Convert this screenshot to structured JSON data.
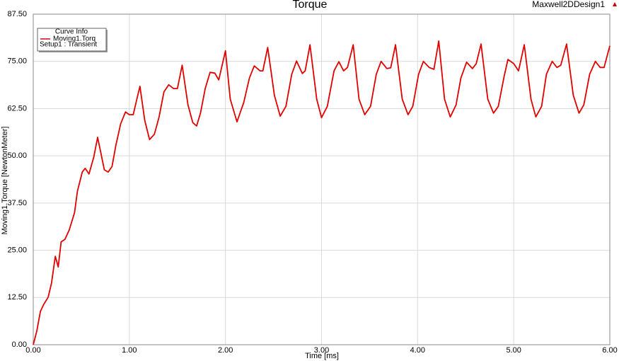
{
  "chart_data": {
    "type": "line",
    "title": "Torque",
    "design_name": "Maxwell2DDesign1",
    "x_label": "Time [ms]",
    "y_label": "Moving1.Torque [NewtonMeter]",
    "legend_title": "Curve Info",
    "legend_subtitle": "Setup1 : Transient",
    "legend_position": "top-left",
    "grid": true,
    "xlim": [
      0,
      6
    ],
    "ylim": [
      0,
      87.5
    ],
    "xticks": [
      {
        "value": 0,
        "label": "0.00"
      },
      {
        "value": 1,
        "label": "1.00"
      },
      {
        "value": 2,
        "label": "2.00"
      },
      {
        "value": 3,
        "label": "3.00"
      },
      {
        "value": 4,
        "label": "4.00"
      },
      {
        "value": 5,
        "label": "5.00"
      },
      {
        "value": 6,
        "label": "6.00"
      }
    ],
    "yticks": [
      {
        "value": 0,
        "label": "0.00"
      },
      {
        "value": 12.5,
        "label": "12.50"
      },
      {
        "value": 25,
        "label": "25.00"
      },
      {
        "value": 37.5,
        "label": "37.50"
      },
      {
        "value": 50,
        "label": "50.00"
      },
      {
        "value": 62.5,
        "label": "62.50"
      },
      {
        "value": 75,
        "label": "75.00"
      },
      {
        "value": 87.5,
        "label": "87.50"
      }
    ],
    "x": [
      0,
      0.037,
      0.074,
      0.11,
      0.155,
      0.19,
      0.23,
      0.26,
      0.29,
      0.33,
      0.375,
      0.43,
      0.46,
      0.51,
      0.54,
      0.58,
      0.63,
      0.67,
      0.71,
      0.74,
      0.78,
      0.82,
      0.86,
      0.91,
      0.96,
      1.0,
      1.04,
      1.07,
      1.11,
      1.16,
      1.21,
      1.26,
      1.31,
      1.36,
      1.41,
      1.46,
      1.5,
      1.55,
      1.61,
      1.66,
      1.7,
      1.74,
      1.79,
      1.84,
      1.89,
      1.93,
      2.0,
      2.05,
      2.12,
      2.19,
      2.25,
      2.3,
      2.36,
      2.39,
      2.44,
      2.51,
      2.57,
      2.63,
      2.69,
      2.74,
      2.8,
      2.83,
      2.88,
      2.95,
      3.0,
      3.06,
      3.13,
      3.18,
      3.23,
      3.27,
      3.33,
      3.39,
      3.45,
      3.51,
      3.57,
      3.62,
      3.68,
      3.72,
      3.77,
      3.84,
      3.9,
      3.95,
      4.01,
      4.06,
      4.12,
      4.17,
      4.22,
      4.28,
      4.34,
      4.4,
      4.45,
      4.51,
      4.57,
      4.61,
      4.66,
      4.73,
      4.79,
      4.84,
      4.9,
      4.94,
      5.0,
      5.05,
      5.11,
      5.18,
      5.23,
      5.29,
      5.34,
      5.4,
      5.45,
      5.49,
      5.55,
      5.62,
      5.68,
      5.73,
      5.79,
      5.85,
      5.9,
      5.94,
      6.0
    ],
    "series": [
      {
        "name": "Moving1.Torq",
        "color": "#e00000",
        "values": [
          0,
          3.6,
          8.8,
          10.7,
          12.6,
          16.3,
          23.4,
          20.6,
          27.2,
          27.9,
          30.4,
          35.0,
          40.7,
          45.7,
          46.7,
          45.2,
          49.7,
          54.9,
          50.0,
          46.3,
          45.7,
          47.2,
          52.8,
          58.5,
          61.6,
          60.9,
          60.9,
          64.1,
          68.4,
          59.4,
          54.3,
          55.7,
          60.3,
          66.9,
          68.8,
          67.8,
          67.8,
          74.0,
          63.5,
          58.8,
          57.9,
          61.3,
          67.8,
          72.1,
          71.9,
          70.1,
          77.8,
          65.0,
          59.0,
          64.1,
          70.6,
          73.8,
          72.5,
          72.5,
          78.7,
          66.0,
          60.5,
          63.1,
          71.6,
          75.1,
          71.8,
          72.5,
          79.4,
          65.0,
          60.1,
          63.1,
          72.5,
          74.9,
          72.5,
          73.4,
          79.4,
          65.0,
          60.9,
          63.1,
          71.6,
          75.0,
          73.1,
          73.3,
          79.4,
          65.0,
          60.9,
          63.1,
          71.6,
          75.0,
          73.4,
          72.9,
          80.4,
          65.0,
          60.3,
          63.5,
          70.6,
          74.8,
          73.1,
          74.4,
          79.6,
          65.0,
          61.3,
          63.1,
          71.0,
          75.5,
          74.4,
          72.5,
          79.4,
          65.0,
          60.3,
          63.1,
          71.6,
          75.0,
          73.4,
          74.0,
          79.6,
          66.0,
          61.3,
          63.5,
          71.6,
          75.0,
          73.4,
          73.4,
          79.1
        ]
      }
    ]
  }
}
